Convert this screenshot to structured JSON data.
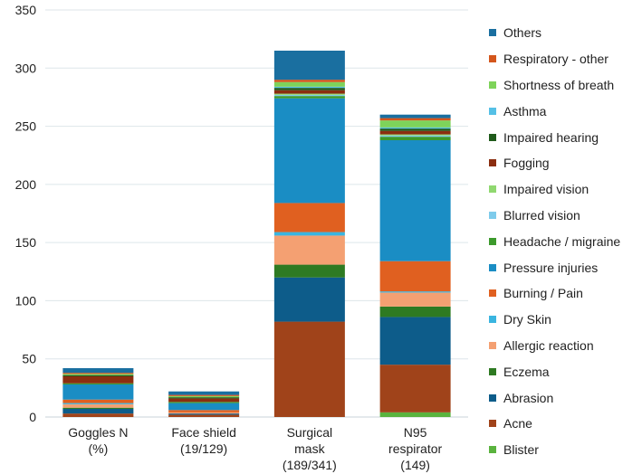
{
  "chart_data": {
    "type": "bar",
    "stacked": true,
    "categories": [
      [
        "Goggles N",
        "(%)"
      ],
      [
        "Face shield",
        "(19/129)"
      ],
      [
        "Surgical",
        "mask",
        "(189/341)"
      ],
      [
        "N95",
        "respirator",
        "(149)"
      ]
    ],
    "ylim": [
      0,
      350
    ],
    "yticks": [
      0,
      50,
      100,
      150,
      200,
      250,
      300,
      350
    ],
    "grid": true,
    "legend_position": "right",
    "series": [
      {
        "name": "Blister",
        "color": "#5ab33e",
        "values": [
          0,
          0,
          0,
          4
        ]
      },
      {
        "name": "Acne",
        "color": "#a0431a",
        "values": [
          3,
          2,
          82,
          41
        ]
      },
      {
        "name": "Abrasion",
        "color": "#0d5c8a",
        "values": [
          4,
          1,
          38,
          41
        ]
      },
      {
        "name": "Eczema",
        "color": "#2e7a22",
        "values": [
          1,
          0,
          11,
          9
        ]
      },
      {
        "name": "Allergic reaction",
        "color": "#f4a072",
        "values": [
          3,
          1,
          25,
          12
        ]
      },
      {
        "name": "Dry Skin",
        "color": "#3ab5e0",
        "values": [
          1,
          0,
          3,
          1
        ]
      },
      {
        "name": "Burning / Pain",
        "color": "#e06020",
        "values": [
          3,
          2,
          25,
          26
        ]
      },
      {
        "name": "Pressure injuries",
        "color": "#1a8dc4",
        "values": [
          13,
          6,
          90,
          104
        ]
      },
      {
        "name": "Headache / migraine",
        "color": "#3c9a2c",
        "values": [
          1,
          1,
          2,
          3
        ]
      },
      {
        "name": "Blurred vision",
        "color": "#7ecbeb",
        "values": [
          0,
          0,
          1,
          1
        ]
      },
      {
        "name": "Impaired vision",
        "color": "#90d870",
        "values": [
          0,
          0,
          1,
          1
        ]
      },
      {
        "name": "Fogging",
        "color": "#8b2e10",
        "values": [
          6,
          3,
          3,
          3
        ]
      },
      {
        "name": "Impaired hearing",
        "color": "#1f5a1a",
        "values": [
          1,
          1,
          2,
          2
        ]
      },
      {
        "name": "Asthma",
        "color": "#55c0e6",
        "values": [
          0,
          0,
          1,
          1
        ]
      },
      {
        "name": "Shortness of breath",
        "color": "#7ed35a",
        "values": [
          1,
          1,
          4,
          6
        ]
      },
      {
        "name": "Respiratory - other",
        "color": "#d4561c",
        "values": [
          1,
          1,
          2,
          2
        ]
      },
      {
        "name": "Others",
        "color": "#1a6fa0",
        "values": [
          4,
          3,
          25,
          3
        ]
      }
    ]
  },
  "legend_order": [
    "Others",
    "Respiratory - other",
    "Shortness of breath",
    "Asthma",
    "Impaired hearing",
    "Fogging",
    "Impaired vision",
    "Blurred vision",
    "Headache / migraine",
    "Pressure injuries",
    "Burning / Pain",
    "Dry Skin",
    "Allergic reaction",
    "Eczema",
    "Abrasion",
    "Acne",
    "Blister"
  ]
}
